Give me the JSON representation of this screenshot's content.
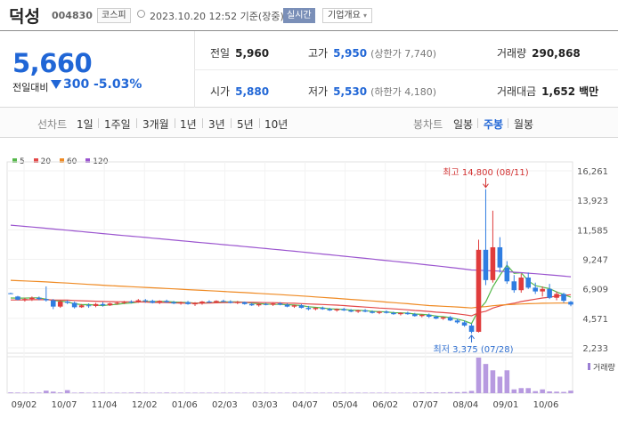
{
  "header": {
    "name": "덕성",
    "code": "004830",
    "market": "코스피",
    "timestamp": "2023.10.20 12:52 기준(장중)",
    "realtime": "실시간",
    "overview": "기업개요"
  },
  "price": {
    "current": "5,660",
    "change_label": "전일대비",
    "change": "300",
    "change_pct": "-5.03%"
  },
  "stats": {
    "prev_close": {
      "label": "전일",
      "value": "5,960"
    },
    "high": {
      "label": "고가",
      "value": "5,950",
      "sub": "(상한가 7,740)"
    },
    "volume": {
      "label": "거래량",
      "value": "290,868"
    },
    "open": {
      "label": "시가",
      "value": "5,880"
    },
    "low": {
      "label": "저가",
      "value": "5,530",
      "sub": "(하한가 4,180)"
    },
    "amount": {
      "label": "거래대금",
      "value": "1,652",
      "unit": "백만"
    }
  },
  "toolbar": {
    "line_head": "선차트",
    "line_items": [
      "1일",
      "1주일",
      "3개월",
      "1년",
      "3년",
      "5년",
      "10년"
    ],
    "candle_head": "봉차트",
    "candle_items": [
      "일봉",
      "주봉",
      "월봉"
    ],
    "active": "주봉"
  },
  "colors": {
    "up": "#e03c3c",
    "down": "#2f7de1",
    "ma5": "#55b84a",
    "ma20": "#e34848",
    "ma60": "#ef8a23",
    "ma120": "#9b55cf"
  },
  "chart_data": {
    "type": "candlestick",
    "legend": [
      "5",
      "20",
      "60",
      "120"
    ],
    "y_ticks": [
      "16,261",
      "13,923",
      "11,585",
      "9,247",
      "6,909",
      "4,571",
      "2,233"
    ],
    "ylim": [
      2233,
      16261
    ],
    "x_ticks": [
      "09/02",
      "10/07",
      "11/04",
      "12/02",
      "01/06",
      "02/03",
      "03/03",
      "04/07",
      "05/04",
      "06/02",
      "07/07",
      "08/04",
      "09/01",
      "10/06"
    ],
    "high_annotation": "최고 14,800 (08/11)",
    "low_annotation": "최저 3,375 (07/28)",
    "volume_label": "거래량",
    "candles": [
      [
        6560,
        6600,
        6500,
        6520
      ],
      [
        6300,
        6350,
        6000,
        6050
      ],
      [
        6050,
        6200,
        5900,
        6100
      ],
      [
        6100,
        6300,
        5950,
        6200
      ],
      [
        6200,
        6300,
        6000,
        6100
      ],
      [
        6100,
        7100,
        5900,
        6000
      ],
      [
        6000,
        6100,
        5300,
        5500
      ],
      [
        5500,
        6000,
        5400,
        5900
      ],
      [
        5900,
        6000,
        5700,
        5800
      ],
      [
        5800,
        5900,
        5350,
        5450
      ],
      [
        5450,
        5700,
        5400,
        5600
      ],
      [
        5600,
        5750,
        5400,
        5550
      ],
      [
        5550,
        5800,
        5450,
        5700
      ],
      [
        5700,
        5850,
        5500,
        5600
      ],
      [
        5600,
        5800,
        5550,
        5750
      ],
      [
        5750,
        5900,
        5650,
        5800
      ],
      [
        5800,
        5950,
        5700,
        5900
      ],
      [
        5900,
        6000,
        5750,
        5850
      ],
      [
        5850,
        6100,
        5800,
        6000
      ],
      [
        6000,
        6100,
        5800,
        5950
      ],
      [
        5950,
        6050,
        5750,
        5800
      ],
      [
        5800,
        6000,
        5700,
        5950
      ],
      [
        5950,
        6050,
        5800,
        5850
      ],
      [
        5850,
        5950,
        5700,
        5750
      ],
      [
        5750,
        5900,
        5650,
        5850
      ],
      [
        5850,
        5950,
        5650,
        5700
      ],
      [
        5700,
        5850,
        5550,
        5750
      ],
      [
        5750,
        5950,
        5650,
        5900
      ],
      [
        5900,
        6000,
        5800,
        5850
      ],
      [
        5850,
        6000,
        5800,
        5950
      ],
      [
        5950,
        6050,
        5850,
        5900
      ],
      [
        5900,
        6000,
        5750,
        5800
      ],
      [
        5800,
        5950,
        5700,
        5850
      ],
      [
        5850,
        5900,
        5650,
        5700
      ],
      [
        5700,
        5800,
        5550,
        5600
      ],
      [
        5600,
        5750,
        5500,
        5700
      ],
      [
        5700,
        5800,
        5600,
        5650
      ],
      [
        5650,
        5800,
        5550,
        5750
      ],
      [
        5750,
        5850,
        5600,
        5650
      ],
      [
        5650,
        5750,
        5450,
        5500
      ],
      [
        5500,
        5650,
        5400,
        5600
      ],
      [
        5600,
        5700,
        5350,
        5400
      ],
      [
        5400,
        5550,
        5200,
        5300
      ],
      [
        5300,
        5450,
        5200,
        5400
      ],
      [
        5400,
        5500,
        5250,
        5300
      ],
      [
        5300,
        5400,
        5150,
        5200
      ],
      [
        5200,
        5350,
        5100,
        5300
      ],
      [
        5300,
        5400,
        5150,
        5200
      ],
      [
        5200,
        5300,
        5050,
        5100
      ],
      [
        5100,
        5250,
        5000,
        5200
      ],
      [
        5200,
        5300,
        5050,
        5100
      ],
      [
        5100,
        5200,
        4950,
        5000
      ],
      [
        5000,
        5150,
        4900,
        5100
      ],
      [
        5100,
        5200,
        4950,
        5000
      ],
      [
        5000,
        5100,
        4850,
        4900
      ],
      [
        4900,
        5050,
        4800,
        5000
      ],
      [
        5000,
        5100,
        4850,
        4900
      ],
      [
        4900,
        5000,
        4700,
        4750
      ],
      [
        4750,
        4900,
        4650,
        4850
      ],
      [
        4850,
        4950,
        4600,
        4700
      ],
      [
        4700,
        4800,
        4500,
        4550
      ],
      [
        4550,
        4700,
        4450,
        4650
      ],
      [
        4650,
        4750,
        4350,
        4400
      ],
      [
        4400,
        4550,
        4150,
        4250
      ],
      [
        4250,
        4400,
        3900,
        4000
      ],
      [
        4000,
        4150,
        3375,
        3500
      ],
      [
        3500,
        10800,
        3450,
        10000
      ],
      [
        10000,
        14800,
        7200,
        7600
      ],
      [
        7600,
        13100,
        7400,
        10200
      ],
      [
        10200,
        11000,
        8200,
        8600
      ],
      [
        8600,
        9100,
        7300,
        7500
      ],
      [
        7500,
        8000,
        6600,
        6800
      ],
      [
        6800,
        8100,
        6600,
        7800
      ],
      [
        7800,
        8200,
        6900,
        7000
      ],
      [
        7000,
        7400,
        6500,
        6700
      ],
      [
        6700,
        7100,
        6300,
        6900
      ],
      [
        6900,
        7300,
        6100,
        6200
      ],
      [
        6200,
        6700,
        6000,
        6500
      ],
      [
        6500,
        6600,
        5800,
        5960
      ],
      [
        5880,
        5950,
        5530,
        5660
      ]
    ],
    "volume": [
      0.3,
      0.25,
      0.2,
      0.3,
      0.25,
      1.0,
      0.6,
      0.3,
      1.2,
      0.2,
      0.3,
      0.2,
      0.2,
      0.25,
      0.2,
      0.2,
      0.2,
      0.25,
      0.3,
      0.2,
      0.2,
      0.2,
      0.25,
      0.2,
      0.2,
      0.2,
      0.2,
      0.2,
      0.2,
      0.2,
      0.2,
      0.2,
      0.2,
      0.2,
      0.2,
      0.2,
      0.2,
      0.2,
      0.2,
      0.2,
      0.2,
      0.2,
      0.2,
      0.2,
      0.2,
      0.2,
      0.2,
      0.2,
      0.2,
      0.2,
      0.2,
      0.2,
      0.2,
      0.2,
      0.2,
      0.2,
      0.2,
      0.2,
      0.3,
      0.3,
      0.3,
      0.3,
      0.4,
      0.4,
      0.5,
      0.9,
      14.0,
      11.5,
      9.0,
      6.5,
      9.0,
      1.5,
      2.0,
      2.0,
      0.8,
      1.5,
      0.7,
      0.6,
      0.5,
      1.0
    ]
  }
}
